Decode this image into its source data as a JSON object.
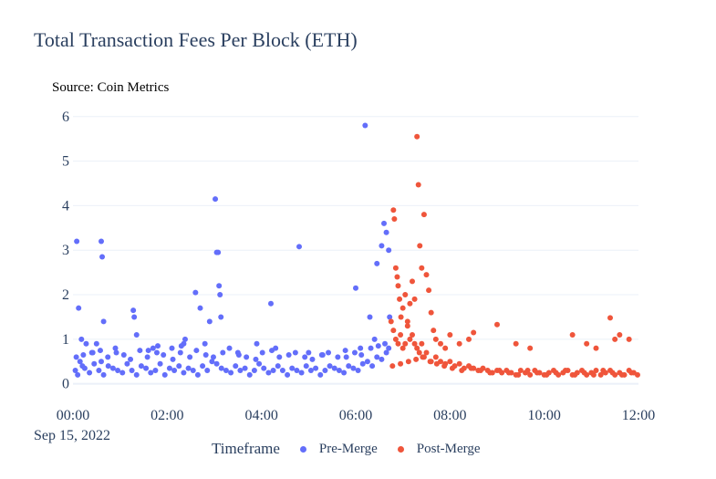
{
  "title": "Total Transaction Fees Per Block (ETH)",
  "source": "Source: Coin Metrics",
  "date_label": "Sep 15, 2022",
  "legend": {
    "title": "Timeframe",
    "items": [
      {
        "name": "Pre-Merge",
        "color": "#636efa"
      },
      {
        "name": "Post-Merge",
        "color": "#ef553b"
      }
    ]
  },
  "chart_data": {
    "type": "scatter",
    "title": "Total Transaction Fees Per Block (ETH)",
    "xlabel": "",
    "ylabel": "",
    "x_unit": "hours since 00:00",
    "xlim": [
      0,
      12
    ],
    "ylim": [
      -0.15,
      6.2
    ],
    "x_ticks": [
      {
        "value": 0,
        "label": "00:00"
      },
      {
        "value": 2,
        "label": "02:00"
      },
      {
        "value": 4,
        "label": "04:00"
      },
      {
        "value": 6,
        "label": "06:00"
      },
      {
        "value": 8,
        "label": "08:00"
      },
      {
        "value": 10,
        "label": "10:00"
      },
      {
        "value": 12,
        "label": "12:00"
      }
    ],
    "y_ticks": [
      {
        "value": 0,
        "label": "0"
      },
      {
        "value": 1,
        "label": "1"
      },
      {
        "value": 2,
        "label": "2"
      },
      {
        "value": 3,
        "label": "3"
      },
      {
        "value": 4,
        "label": "4"
      },
      {
        "value": 5,
        "label": "5"
      },
      {
        "value": 6,
        "label": "6"
      }
    ],
    "grid": true,
    "legend_position": "bottom",
    "series": [
      {
        "name": "Pre-Merge",
        "color": "#636efa",
        "x": [
          0.05,
          0.1,
          0.15,
          0.2,
          0.25,
          0.35,
          0.45,
          0.55,
          0.6,
          0.65,
          0.75,
          0.85,
          0.95,
          1.05,
          1.15,
          1.25,
          1.35,
          1.45,
          1.55,
          1.65,
          1.75,
          1.85,
          1.95,
          2.05,
          2.15,
          2.25,
          2.35,
          2.45,
          2.55,
          2.65,
          2.75,
          2.85,
          2.95,
          3.05,
          3.15,
          3.25,
          3.35,
          3.45,
          3.55,
          3.65,
          3.75,
          3.85,
          3.95,
          4.05,
          4.15,
          4.25,
          4.35,
          4.45,
          4.55,
          4.65,
          4.75,
          4.85,
          4.95,
          5.05,
          5.15,
          5.25,
          5.35,
          5.45,
          5.55,
          5.65,
          5.75,
          5.85,
          5.95,
          6.05,
          6.15,
          6.25,
          6.35,
          6.45,
          6.55,
          6.65,
          6.7,
          0.08,
          0.12,
          0.18,
          0.6,
          0.62,
          0.65,
          0.5,
          1.28,
          1.3,
          1.35,
          2.35,
          2.38,
          3.02,
          3.05,
          3.08,
          3.1,
          3.12,
          3.14,
          2.6,
          2.7,
          2.9,
          1.7,
          1.8,
          2.1,
          4.2,
          4.8,
          6.2,
          6.0,
          6.3,
          6.45,
          6.55,
          6.6,
          6.65,
          6.7,
          6.72,
          0.28,
          0.4,
          0.9,
          1.6,
          2.3,
          2.8,
          3.5,
          3.9,
          4.3,
          5.0,
          5.3,
          5.8,
          6.1,
          6.4,
          0.07,
          0.22,
          0.42,
          0.58,
          0.74,
          0.92,
          1.08,
          1.22,
          1.42,
          1.58,
          1.78,
          1.92,
          2.12,
          2.28,
          2.48,
          2.62,
          2.82,
          2.98,
          3.18,
          3.32,
          3.52,
          3.68,
          3.88,
          4.02,
          4.22,
          4.38,
          4.58,
          4.72,
          4.92,
          5.08,
          5.28,
          5.42,
          5.62,
          5.78,
          5.98,
          6.12,
          6.32,
          6.48,
          6.62
        ],
        "y": [
          0.3,
          0.2,
          0.5,
          0.4,
          0.35,
          0.25,
          0.45,
          0.3,
          0.5,
          0.2,
          0.4,
          0.35,
          0.3,
          0.25,
          0.45,
          0.3,
          0.2,
          0.4,
          0.35,
          0.25,
          0.3,
          0.45,
          0.2,
          0.35,
          0.3,
          0.4,
          0.25,
          0.35,
          0.3,
          0.2,
          0.4,
          0.3,
          0.5,
          0.45,
          0.35,
          0.3,
          0.25,
          0.4,
          0.3,
          0.35,
          0.2,
          0.3,
          0.45,
          0.35,
          0.25,
          0.3,
          0.4,
          0.3,
          0.2,
          0.35,
          0.3,
          0.25,
          0.4,
          0.3,
          0.35,
          0.2,
          0.3,
          0.4,
          0.35,
          0.3,
          0.25,
          0.4,
          0.35,
          0.3,
          0.45,
          0.5,
          0.4,
          0.6,
          0.55,
          0.7,
          0.8,
          3.2,
          1.7,
          1.0,
          3.2,
          2.85,
          1.4,
          0.9,
          1.65,
          1.5,
          1.1,
          0.9,
          1.0,
          4.15,
          2.95,
          2.95,
          2.2,
          2.0,
          1.5,
          2.05,
          1.7,
          1.4,
          0.8,
          0.85,
          0.8,
          1.8,
          3.08,
          5.8,
          2.15,
          1.5,
          2.7,
          3.1,
          3.6,
          3.4,
          3.0,
          1.5,
          0.9,
          0.7,
          0.8,
          0.75,
          0.85,
          0.9,
          0.7,
          0.9,
          0.8,
          0.7,
          0.65,
          0.6,
          0.8,
          1.0,
          0.6,
          0.65,
          0.7,
          0.75,
          0.6,
          0.7,
          0.65,
          0.55,
          0.75,
          0.6,
          0.7,
          0.65,
          0.55,
          0.7,
          0.6,
          0.75,
          0.65,
          0.6,
          0.7,
          0.8,
          0.65,
          0.6,
          0.55,
          0.7,
          0.75,
          0.6,
          0.65,
          0.7,
          0.6,
          0.55,
          0.65,
          0.7,
          0.6,
          0.75,
          0.7,
          0.65,
          0.8,
          0.85,
          0.9
        ]
      },
      {
        "name": "Post-Merge",
        "color": "#ef553b",
        "x": [
          6.75,
          6.8,
          6.85,
          6.9,
          6.95,
          7.0,
          7.05,
          7.1,
          7.15,
          7.2,
          7.25,
          7.3,
          7.35,
          7.4,
          7.45,
          7.5,
          7.6,
          7.7,
          7.8,
          7.9,
          8.0,
          8.1,
          8.2,
          8.3,
          8.4,
          8.5,
          8.6,
          8.7,
          8.8,
          8.9,
          9.0,
          9.1,
          9.2,
          9.3,
          9.4,
          9.5,
          9.6,
          9.7,
          9.8,
          9.9,
          10.0,
          10.1,
          10.2,
          10.3,
          10.4,
          10.5,
          10.6,
          10.7,
          10.8,
          10.9,
          11.0,
          11.1,
          11.2,
          11.3,
          11.4,
          11.5,
          11.6,
          11.7,
          11.8,
          11.9,
          11.98,
          6.8,
          6.82,
          6.85,
          6.88,
          6.9,
          6.93,
          6.96,
          7.0,
          7.05,
          7.1,
          7.15,
          7.2,
          7.25,
          7.3,
          7.33,
          7.36,
          7.4,
          7.45,
          7.5,
          7.55,
          7.6,
          7.65,
          7.7,
          7.8,
          7.9,
          8.0,
          8.2,
          8.4,
          8.5,
          9.0,
          9.4,
          9.7,
          10.6,
          10.9,
          11.1,
          11.4,
          11.5,
          11.6,
          11.8,
          6.78,
          6.95,
          7.12,
          7.28,
          7.42,
          7.58,
          7.72,
          7.88,
          8.05,
          8.25,
          8.45,
          8.65,
          8.85,
          9.05,
          9.25,
          9.45,
          9.65,
          9.85,
          10.05,
          10.25,
          10.45,
          10.65,
          10.85,
          11.05,
          11.25,
          11.45,
          11.65,
          11.85
        ],
        "y": [
          1.4,
          1.2,
          1.0,
          0.9,
          1.1,
          0.8,
          0.9,
          1.3,
          1.0,
          1.1,
          0.9,
          0.8,
          0.7,
          0.9,
          0.6,
          0.7,
          0.5,
          0.6,
          0.5,
          0.45,
          0.5,
          0.4,
          0.45,
          0.35,
          0.4,
          0.35,
          0.3,
          0.35,
          0.3,
          0.25,
          0.3,
          0.25,
          0.3,
          0.25,
          0.2,
          0.3,
          0.25,
          0.2,
          0.3,
          0.25,
          0.2,
          0.25,
          0.3,
          0.2,
          0.25,
          0.3,
          0.2,
          0.25,
          0.3,
          0.2,
          0.25,
          0.3,
          0.2,
          0.25,
          0.3,
          0.2,
          0.25,
          0.2,
          0.3,
          0.25,
          0.2,
          3.9,
          3.7,
          2.6,
          2.4,
          2.2,
          1.9,
          1.5,
          1.7,
          2.0,
          1.4,
          1.8,
          2.3,
          1.9,
          5.55,
          4.47,
          3.1,
          2.6,
          3.8,
          2.45,
          2.1,
          1.6,
          1.2,
          1.0,
          0.9,
          0.8,
          1.1,
          0.9,
          1.0,
          1.15,
          1.33,
          0.9,
          0.8,
          1.1,
          0.9,
          0.8,
          1.48,
          1.0,
          1.1,
          1.0,
          0.4,
          0.45,
          0.5,
          0.55,
          0.6,
          0.5,
          0.45,
          0.4,
          0.35,
          0.3,
          0.35,
          0.3,
          0.25,
          0.3,
          0.25,
          0.2,
          0.3,
          0.25,
          0.2,
          0.25,
          0.3,
          0.2,
          0.25,
          0.2,
          0.3,
          0.25,
          0.2,
          0.25
        ]
      }
    ]
  }
}
